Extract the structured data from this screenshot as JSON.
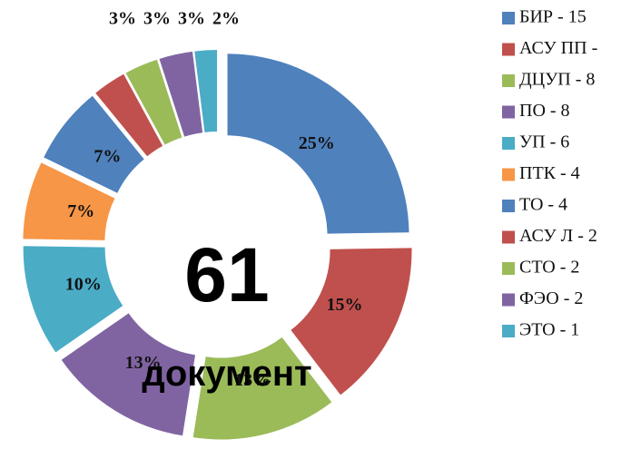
{
  "chart_data": {
    "type": "donut",
    "categories": [
      "БИР - 15",
      "АСУ ПП -",
      "ДЦУП - 8",
      "ПО - 8",
      "УП - 6",
      "ПТК - 4",
      "ТО - 4",
      "АСУ Л - 2",
      "СТО - 2",
      "ФЭО - 2",
      "ЭТО - 1"
    ],
    "values": [
      25,
      15,
      13,
      13,
      10,
      7,
      7,
      3,
      3,
      3,
      2
    ],
    "value_labels": [
      "25%",
      "15%",
      "13%",
      "13%",
      "10%",
      "7%",
      "7%",
      "3%",
      "3%",
      "3%",
      "2%"
    ],
    "colors": [
      "#4f81bd",
      "#c0504d",
      "#9bbb59",
      "#8064a2",
      "#4bacc6",
      "#f79646",
      "#4f81bd",
      "#c0504d",
      "#9bbb59",
      "#8064a2",
      "#4bacc6"
    ],
    "annotations": [
      "61",
      "документ"
    ],
    "legend": "right"
  }
}
